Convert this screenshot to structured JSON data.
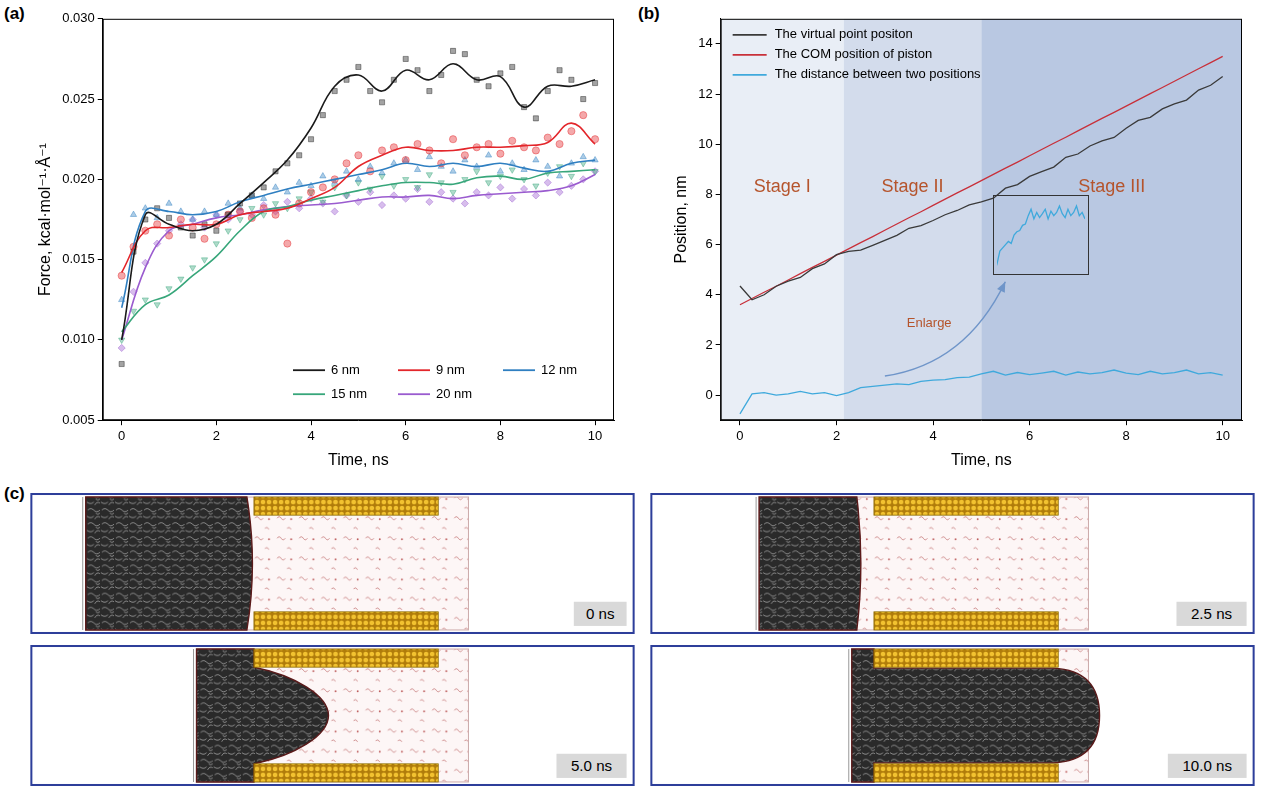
{
  "chart_data": [
    {
      "panel": "(a)",
      "type": "scatter",
      "x_label": "Time, ns",
      "y_label": "Force, kcal·mol⁻¹·Å⁻¹",
      "x": [
        0,
        0.25,
        0.5,
        0.75,
        1,
        1.25,
        1.5,
        1.75,
        2,
        2.25,
        2.5,
        2.75,
        3,
        3.25,
        3.5,
        3.75,
        4,
        4.25,
        4.5,
        4.75,
        5,
        5.25,
        5.5,
        5.75,
        6,
        6.25,
        6.5,
        6.75,
        7,
        7.25,
        7.5,
        7.75,
        8,
        8.25,
        8.5,
        8.75,
        9,
        9.25,
        9.5,
        9.75,
        10
      ],
      "smooth_x": [
        0,
        0.5,
        1,
        1.5,
        2,
        2.5,
        3,
        3.5,
        4,
        4.5,
        5,
        5.5,
        6,
        6.5,
        7,
        7.5,
        8,
        8.5,
        9,
        9.5,
        10
      ],
      "xlim": [
        -0.4,
        10.4
      ],
      "xticks": [
        0,
        2,
        4,
        6,
        8,
        10
      ],
      "ylim": [
        0.005,
        0.03
      ],
      "yticks": [
        0.005,
        {
          "value": 0.01,
          "label": "0.010"
        },
        0.015,
        {
          "value": 0.02,
          "label": "0.020"
        },
        0.025,
        {
          "value": 0.03,
          "label": "0.030"
        }
      ],
      "grid": false,
      "legend": "bottom right",
      "series": [
        {
          "name": "6 nm",
          "color": "#1a1a1a",
          "marker": "square",
          "values": [
            0.0085,
            0.0155,
            0.0175,
            0.0182,
            0.0176,
            0.017,
            0.0165,
            0.0172,
            0.0168,
            0.0178,
            0.0185,
            0.019,
            0.0195,
            0.0205,
            0.021,
            0.0215,
            0.0225,
            0.024,
            0.0255,
            0.0262,
            0.027,
            0.0255,
            0.0248,
            0.0262,
            0.0275,
            0.0268,
            0.0255,
            0.0265,
            0.028,
            0.0278,
            0.0262,
            0.0258,
            0.0266,
            0.027,
            0.0245,
            0.0238,
            0.0255,
            0.0268,
            0.0262,
            0.025,
            0.026
          ],
          "smoothed": [
            0.01,
            0.0178,
            0.0172,
            0.0168,
            0.0172,
            0.0185,
            0.0198,
            0.0212,
            0.0232,
            0.0258,
            0.0265,
            0.0255,
            0.0268,
            0.0262,
            0.0272,
            0.0262,
            0.0264,
            0.0245,
            0.0258,
            0.0258,
            0.0262
          ]
        },
        {
          "name": "9 nm",
          "color": "#e3262b",
          "marker": "circle",
          "values": [
            0.014,
            0.0158,
            0.0168,
            0.0172,
            0.0165,
            0.0175,
            0.017,
            0.0163,
            0.0172,
            0.0178,
            0.018,
            0.0176,
            0.0182,
            0.0178,
            0.016,
            0.0185,
            0.0192,
            0.0195,
            0.02,
            0.021,
            0.0215,
            0.0205,
            0.0218,
            0.022,
            0.0212,
            0.0222,
            0.0218,
            0.021,
            0.0225,
            0.0215,
            0.022,
            0.0222,
            0.0216,
            0.0224,
            0.022,
            0.0218,
            0.0226,
            0.0222,
            0.023,
            0.024,
            0.0225
          ],
          "smoothed": [
            0.0142,
            0.0168,
            0.017,
            0.0172,
            0.0172,
            0.0178,
            0.018,
            0.0182,
            0.0188,
            0.0195,
            0.0208,
            0.0215,
            0.022,
            0.0218,
            0.0218,
            0.022,
            0.022,
            0.0221,
            0.0223,
            0.0235,
            0.0222
          ]
        },
        {
          "name": "12 nm",
          "color": "#2f7fc1",
          "marker": "triangle",
          "values": [
            0.0125,
            0.0178,
            0.0182,
            0.0176,
            0.0185,
            0.018,
            0.0175,
            0.018,
            0.0178,
            0.0185,
            0.0182,
            0.019,
            0.0188,
            0.0195,
            0.0192,
            0.0198,
            0.0196,
            0.0202,
            0.0198,
            0.0205,
            0.02,
            0.0208,
            0.0204,
            0.021,
            0.0212,
            0.0206,
            0.0214,
            0.0208,
            0.0205,
            0.0212,
            0.0208,
            0.0215,
            0.0205,
            0.021,
            0.0206,
            0.0212,
            0.0208,
            0.0202,
            0.021,
            0.0214,
            0.0212
          ],
          "smoothed": [
            0.012,
            0.018,
            0.018,
            0.0178,
            0.018,
            0.0186,
            0.019,
            0.0194,
            0.0197,
            0.02,
            0.0203,
            0.0206,
            0.021,
            0.0208,
            0.021,
            0.0208,
            0.021,
            0.0207,
            0.0205,
            0.021,
            0.0212
          ]
        },
        {
          "name": "15 nm",
          "color": "#37a67a",
          "marker": "triangle_down",
          "values": [
            0.01,
            0.0118,
            0.0125,
            0.0122,
            0.0132,
            0.0138,
            0.0145,
            0.015,
            0.016,
            0.0168,
            0.0175,
            0.0182,
            0.0178,
            0.0185,
            0.0182,
            0.0188,
            0.0192,
            0.0186,
            0.0195,
            0.019,
            0.0198,
            0.0194,
            0.0202,
            0.0196,
            0.02,
            0.0195,
            0.0203,
            0.0198,
            0.0192,
            0.02,
            0.0205,
            0.0198,
            0.0202,
            0.0206,
            0.02,
            0.0196,
            0.0204,
            0.0208,
            0.0202,
            0.021,
            0.0205
          ],
          "smoothed": [
            0.0105,
            0.0122,
            0.0128,
            0.014,
            0.0152,
            0.0168,
            0.018,
            0.0183,
            0.0187,
            0.019,
            0.0193,
            0.0196,
            0.0198,
            0.0198,
            0.0197,
            0.0201,
            0.0202,
            0.02,
            0.0204,
            0.0205,
            0.0206
          ]
        },
        {
          "name": "20 nm",
          "color": "#9a5bcf",
          "marker": "diamond",
          "values": [
            0.0095,
            0.013,
            0.0148,
            0.016,
            0.0168,
            0.0172,
            0.0175,
            0.017,
            0.0178,
            0.0175,
            0.018,
            0.0178,
            0.0184,
            0.018,
            0.0186,
            0.0182,
            0.0188,
            0.0185,
            0.018,
            0.019,
            0.0186,
            0.0192,
            0.0184,
            0.019,
            0.0188,
            0.0194,
            0.0186,
            0.0192,
            0.0188,
            0.0185,
            0.0192,
            0.019,
            0.0195,
            0.0188,
            0.0194,
            0.019,
            0.0198,
            0.0192,
            0.0196,
            0.02,
            0.0205
          ],
          "smoothed": [
            0.01,
            0.0145,
            0.0168,
            0.0172,
            0.0176,
            0.0178,
            0.0181,
            0.0183,
            0.0184,
            0.0185,
            0.0187,
            0.0189,
            0.0189,
            0.019,
            0.0188,
            0.019,
            0.0191,
            0.0192,
            0.0193,
            0.0196,
            0.0203
          ]
        }
      ]
    },
    {
      "panel": "(b)",
      "type": "line",
      "x_label": "Time, ns",
      "y_label": "Position, nm",
      "x": [
        0,
        0.25,
        0.5,
        0.75,
        1,
        1.25,
        1.5,
        1.75,
        2,
        2.25,
        2.5,
        2.75,
        3,
        3.25,
        3.5,
        3.75,
        4,
        4.25,
        4.5,
        4.75,
        5,
        5.25,
        5.5,
        5.75,
        6,
        6.25,
        6.5,
        6.75,
        7,
        7.25,
        7.5,
        7.75,
        8,
        8.25,
        8.5,
        8.75,
        9,
        9.25,
        9.5,
        9.75,
        10
      ],
      "xlim": [
        -0.4,
        10.4
      ],
      "xticks": [
        0,
        2,
        4,
        6,
        8,
        10
      ],
      "ylim": [
        -1,
        15
      ],
      "yticks": [
        0,
        2,
        4,
        6,
        8,
        10,
        12,
        14
      ],
      "grid": false,
      "legend": "top left",
      "series": [
        {
          "name": "The virtual point positon",
          "color": "#3a3a3a",
          "values": [
            4.35,
            3.8,
            4.0,
            4.34,
            4.54,
            4.69,
            5.04,
            5.23,
            5.6,
            5.73,
            5.78,
            5.97,
            6.17,
            6.37,
            6.65,
            6.76,
            6.96,
            7.19,
            7.36,
            7.58,
            7.7,
            7.85,
            8.25,
            8.39,
            8.72,
            8.91,
            9.09,
            9.48,
            9.61,
            9.93,
            10.13,
            10.27,
            10.64,
            10.95,
            11.07,
            11.41,
            11.61,
            11.76,
            12.16,
            12.35,
            12.7
          ]
        },
        {
          "name": "The COM position of piston",
          "color": "#c8303a",
          "values": [
            3.6,
            3.85,
            4.1,
            4.34,
            4.59,
            4.84,
            5.09,
            5.33,
            5.58,
            5.83,
            6.08,
            6.32,
            6.57,
            6.82,
            7.07,
            7.31,
            7.56,
            7.81,
            8.06,
            8.3,
            8.55,
            8.8,
            9.05,
            9.29,
            9.54,
            9.79,
            10.04,
            10.28,
            10.53,
            10.78,
            11.03,
            11.27,
            11.52,
            11.77,
            12.02,
            12.26,
            12.51,
            12.76,
            13.01,
            13.25,
            13.5
          ]
        },
        {
          "name": "The distance between two positions",
          "color": "#3fa9dc",
          "values": [
            -0.75,
            0.05,
            0.1,
            0.0,
            0.05,
            0.15,
            0.05,
            0.1,
            -0.02,
            0.1,
            0.3,
            0.35,
            0.4,
            0.45,
            0.42,
            0.55,
            0.6,
            0.62,
            0.7,
            0.72,
            0.85,
            0.95,
            0.8,
            0.9,
            0.82,
            0.88,
            0.95,
            0.8,
            0.92,
            0.85,
            0.9,
            1.0,
            0.88,
            0.82,
            0.95,
            0.85,
            0.9,
            1.0,
            0.85,
            0.9,
            0.8
          ]
        }
      ],
      "stages": [
        {
          "label": "Stage I",
          "range": [
            -0.4,
            2.15
          ],
          "color": "#e9eef6"
        },
        {
          "label": "Stage II",
          "range": [
            2.15,
            5.0
          ],
          "color": "#d3dcec"
        },
        {
          "label": "Stage III",
          "range": [
            5.0,
            10.4
          ],
          "color": "#b9c8e2"
        }
      ],
      "annotations": [
        "Enlarge"
      ],
      "inset_series": 2,
      "inset_xlim": [
        2.25,
        10
      ]
    }
  ],
  "snapshots": {
    "panel": "(c)",
    "frames": [
      "0 ns",
      "2.5 ns",
      "5.0 ns",
      "10.0 ns"
    ]
  }
}
